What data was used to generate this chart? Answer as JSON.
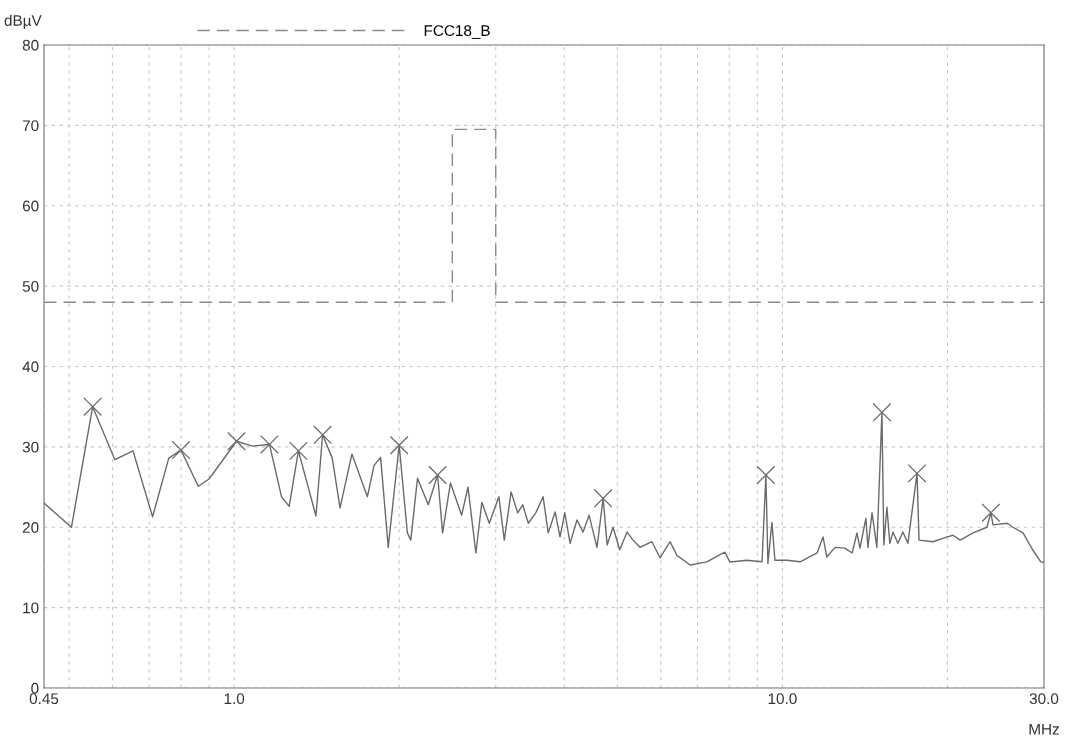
{
  "chart_data": {
    "type": "line",
    "xlabel": "MHz",
    "ylabel": "dBµV",
    "log": "x",
    "xlim": [
      0.45,
      30
    ],
    "ylim": [
      0,
      80
    ],
    "xticks": [
      {
        "value": 0.45,
        "label": "0.45"
      },
      {
        "value": 0.5,
        "label": null
      },
      {
        "value": 0.6,
        "label": null
      },
      {
        "value": 0.7,
        "label": null
      },
      {
        "value": 0.8,
        "label": null
      },
      {
        "value": 0.9,
        "label": null
      },
      {
        "value": 1,
        "label": "1.0"
      },
      {
        "value": 2,
        "label": null
      },
      {
        "value": 3,
        "label": null
      },
      {
        "value": 4,
        "label": null
      },
      {
        "value": 5,
        "label": null
      },
      {
        "value": 6,
        "label": null
      },
      {
        "value": 7,
        "label": null
      },
      {
        "value": 8,
        "label": null
      },
      {
        "value": 9,
        "label": null
      },
      {
        "value": 10,
        "label": "10.0"
      },
      {
        "value": 20,
        "label": null
      },
      {
        "value": 30,
        "label": "30.0"
      }
    ],
    "yticks": [
      0,
      10,
      20,
      30,
      40,
      50,
      60,
      70,
      80
    ],
    "grid": true,
    "legend": "top",
    "series": [
      {
        "name": "FCC18_B",
        "color": "#8a8a8a",
        "line_style": "dashed",
        "marker": "none",
        "x": [
          0.45,
          2.5,
          2.5,
          3.0,
          3.0,
          30
        ],
        "values": [
          48,
          48,
          69.5,
          69.5,
          48,
          48
        ]
      },
      {
        "color": "#6a6a6a",
        "line_style": "solid",
        "marker": "none",
        "x": [
          0.45,
          0.505,
          0.552,
          0.606,
          0.654,
          0.71,
          0.76,
          0.8,
          0.86,
          0.9,
          1.01,
          1.08,
          1.16,
          1.22,
          1.26,
          1.31,
          1.41,
          1.45,
          1.51,
          1.56,
          1.64,
          1.75,
          1.8,
          1.85,
          1.91,
          2.0,
          2.07,
          2.1,
          2.16,
          2.26,
          2.35,
          2.4,
          2.48,
          2.6,
          2.67,
          2.76,
          2.83,
          2.92,
          3.04,
          3.11,
          3.2,
          3.29,
          3.36,
          3.44,
          3.55,
          3.66,
          3.74,
          3.85,
          3.93,
          4.01,
          4.1,
          4.22,
          4.33,
          4.44,
          4.59,
          4.71,
          4.79,
          4.91,
          5.05,
          5.21,
          5.34,
          5.5,
          5.78,
          5.98,
          6.24,
          6.42,
          6.79,
          7.28,
          7.85,
          8.02,
          8.12,
          8.61,
          9.18,
          9.33,
          9.41,
          9.57,
          9.69,
          10.2,
          10.77,
          11.57,
          11.86,
          12.05,
          12.47,
          13.0,
          13.4,
          13.68,
          13.85,
          14.2,
          14.32,
          14.57,
          14.87,
          15.19,
          15.31,
          15.51,
          15.7,
          15.91,
          16.24,
          16.59,
          16.94,
          17.6,
          17.75,
          18.82,
          19.98,
          20.47,
          21.1,
          22.27,
          23.6,
          24.0,
          24.22,
          25.7,
          26.34,
          27.47,
          28.6,
          29.6,
          30
        ],
        "values": [
          23.0,
          20.0,
          35.0,
          28.4,
          29.5,
          21.3,
          28.6,
          29.6,
          25.1,
          26.0,
          30.7,
          30.1,
          30.3,
          23.8,
          22.6,
          29.5,
          21.4,
          31.5,
          28.6,
          22.4,
          29.1,
          23.8,
          27.7,
          28.7,
          17.5,
          30.2,
          19.3,
          18.4,
          26.1,
          22.8,
          26.5,
          19.3,
          25.5,
          21.5,
          25.0,
          16.8,
          23.1,
          20.5,
          23.8,
          18.4,
          24.4,
          21.8,
          22.8,
          20.5,
          21.8,
          23.8,
          19.3,
          21.9,
          18.8,
          21.8,
          18.0,
          20.9,
          19.4,
          21.5,
          17.5,
          23.6,
          17.8,
          20.0,
          17.2,
          19.4,
          18.4,
          17.5,
          18.2,
          16.2,
          18.2,
          16.5,
          15.3,
          15.7,
          16.9,
          15.7,
          15.7,
          15.9,
          15.7,
          26.5,
          15.5,
          20.6,
          15.9,
          15.9,
          15.7,
          16.8,
          18.8,
          16.3,
          17.5,
          17.4,
          16.8,
          19.3,
          17.4,
          21.1,
          17.5,
          21.8,
          17.5,
          34.3,
          17.8,
          22.5,
          18.0,
          19.4,
          18.0,
          19.4,
          18.0,
          26.7,
          18.4,
          18.2,
          18.8,
          19.0,
          18.4,
          19.3,
          20.0,
          21.8,
          20.3,
          20.5,
          20.0,
          19.3,
          17.2,
          15.7,
          15.6
        ]
      },
      {
        "type": "scatter",
        "color": "#6a6a6a",
        "marker": "cross",
        "x": [
          0.552,
          0.8,
          1.01,
          1.16,
          1.31,
          1.45,
          2.0,
          2.35,
          4.71,
          9.33,
          15.19,
          17.6,
          24.0
        ],
        "values": [
          35.0,
          29.6,
          30.7,
          30.3,
          29.5,
          31.5,
          30.2,
          26.5,
          23.6,
          26.5,
          34.3,
          26.7,
          21.8
        ]
      }
    ]
  }
}
